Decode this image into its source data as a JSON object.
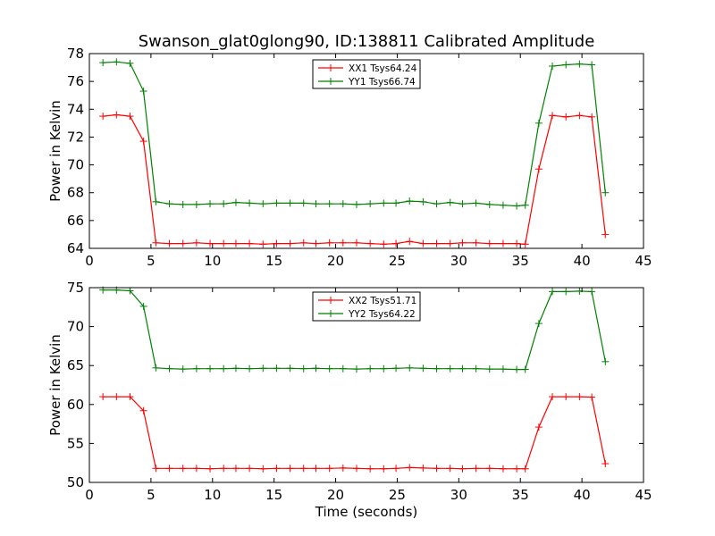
{
  "chart_data": [
    {
      "type": "line",
      "title": "Swanson_glat0glong90, ID:138811 Calibrated Amplitude",
      "xlabel": "",
      "ylabel": "Power in Kelvin",
      "xlim": [
        0,
        45
      ],
      "ylim": [
        64,
        78
      ],
      "xticks": [
        "0",
        "5",
        "10",
        "15",
        "20",
        "25",
        "30",
        "35",
        "40",
        "45"
      ],
      "yticks": [
        "64",
        "66",
        "68",
        "70",
        "72",
        "74",
        "76",
        "78"
      ],
      "xtick_values": [
        0,
        5,
        10,
        15,
        20,
        25,
        30,
        35,
        40,
        45
      ],
      "ytick_values": [
        64,
        66,
        68,
        70,
        72,
        74,
        76,
        78
      ],
      "grid": false,
      "legend_position": "top-center",
      "x": [
        1.1,
        2.2,
        3.3,
        4.4,
        5.4,
        6.5,
        7.6,
        8.7,
        9.8,
        10.9,
        11.9,
        13.0,
        14.1,
        15.2,
        16.3,
        17.4,
        18.4,
        19.5,
        20.6,
        21.7,
        22.8,
        23.9,
        24.9,
        26.0,
        27.1,
        28.2,
        29.3,
        30.3,
        31.4,
        32.5,
        33.6,
        34.7,
        35.4,
        36.5,
        37.6,
        38.7,
        39.8,
        40.8,
        41.9
      ],
      "series": [
        {
          "name": "XX1 Tsys64.24",
          "color": "#ff0000",
          "values": [
            73.5,
            73.6,
            73.5,
            71.7,
            64.4,
            64.35,
            64.35,
            64.4,
            64.35,
            64.35,
            64.35,
            64.35,
            64.3,
            64.35,
            64.35,
            64.4,
            64.35,
            64.4,
            64.4,
            64.4,
            64.35,
            64.3,
            64.35,
            64.5,
            64.35,
            64.35,
            64.35,
            64.4,
            64.4,
            64.35,
            64.35,
            64.35,
            64.3,
            69.7,
            73.55,
            73.45,
            73.55,
            73.45,
            65.0
          ]
        },
        {
          "name": "YY1 Tsys66.74",
          "color": "#008000",
          "values": [
            77.35,
            77.4,
            77.3,
            75.3,
            67.35,
            67.2,
            67.15,
            67.15,
            67.2,
            67.2,
            67.3,
            67.25,
            67.2,
            67.25,
            67.25,
            67.25,
            67.2,
            67.2,
            67.2,
            67.15,
            67.2,
            67.25,
            67.25,
            67.4,
            67.35,
            67.2,
            67.3,
            67.2,
            67.25,
            67.15,
            67.1,
            67.05,
            67.1,
            73.0,
            77.1,
            77.2,
            77.25,
            77.2,
            68.0
          ]
        }
      ]
    },
    {
      "type": "line",
      "title": "",
      "xlabel": "Time (seconds)",
      "ylabel": "Power in Kelvin",
      "xlim": [
        0,
        45
      ],
      "ylim": [
        50,
        75
      ],
      "xticks": [
        "0",
        "5",
        "10",
        "15",
        "20",
        "25",
        "30",
        "35",
        "40",
        "45"
      ],
      "yticks": [
        "50",
        "55",
        "60",
        "65",
        "70",
        "75"
      ],
      "xtick_values": [
        0,
        5,
        10,
        15,
        20,
        25,
        30,
        35,
        40,
        45
      ],
      "ytick_values": [
        50,
        55,
        60,
        65,
        70,
        75
      ],
      "grid": false,
      "legend_position": "top-center",
      "x": [
        1.1,
        2.2,
        3.3,
        4.4,
        5.4,
        6.5,
        7.6,
        8.7,
        9.8,
        10.9,
        11.9,
        13.0,
        14.1,
        15.2,
        16.3,
        17.4,
        18.4,
        19.5,
        20.6,
        21.7,
        22.8,
        23.9,
        24.9,
        26.0,
        27.1,
        28.2,
        29.3,
        30.3,
        31.4,
        32.5,
        33.6,
        34.7,
        35.4,
        36.5,
        37.6,
        38.7,
        39.8,
        40.8,
        41.9
      ],
      "series": [
        {
          "name": "XX2 Tsys51.71",
          "color": "#ff0000",
          "values": [
            61.0,
            61.0,
            61.0,
            59.2,
            51.8,
            51.8,
            51.8,
            51.8,
            51.75,
            51.8,
            51.8,
            51.8,
            51.75,
            51.8,
            51.8,
            51.8,
            51.8,
            51.8,
            51.85,
            51.8,
            51.75,
            51.75,
            51.8,
            51.9,
            51.85,
            51.8,
            51.8,
            51.75,
            51.8,
            51.8,
            51.75,
            51.75,
            51.75,
            57.1,
            61.0,
            61.0,
            61.0,
            60.95,
            52.4
          ]
        },
        {
          "name": "YY2 Tsys64.22",
          "color": "#008000",
          "values": [
            74.7,
            74.7,
            74.6,
            72.6,
            64.7,
            64.6,
            64.55,
            64.6,
            64.6,
            64.6,
            64.65,
            64.6,
            64.65,
            64.65,
            64.65,
            64.6,
            64.65,
            64.6,
            64.6,
            64.55,
            64.6,
            64.6,
            64.65,
            64.7,
            64.65,
            64.6,
            64.6,
            64.6,
            64.6,
            64.55,
            64.55,
            64.5,
            64.5,
            70.4,
            74.5,
            74.5,
            74.55,
            74.5,
            65.5
          ]
        }
      ]
    }
  ]
}
